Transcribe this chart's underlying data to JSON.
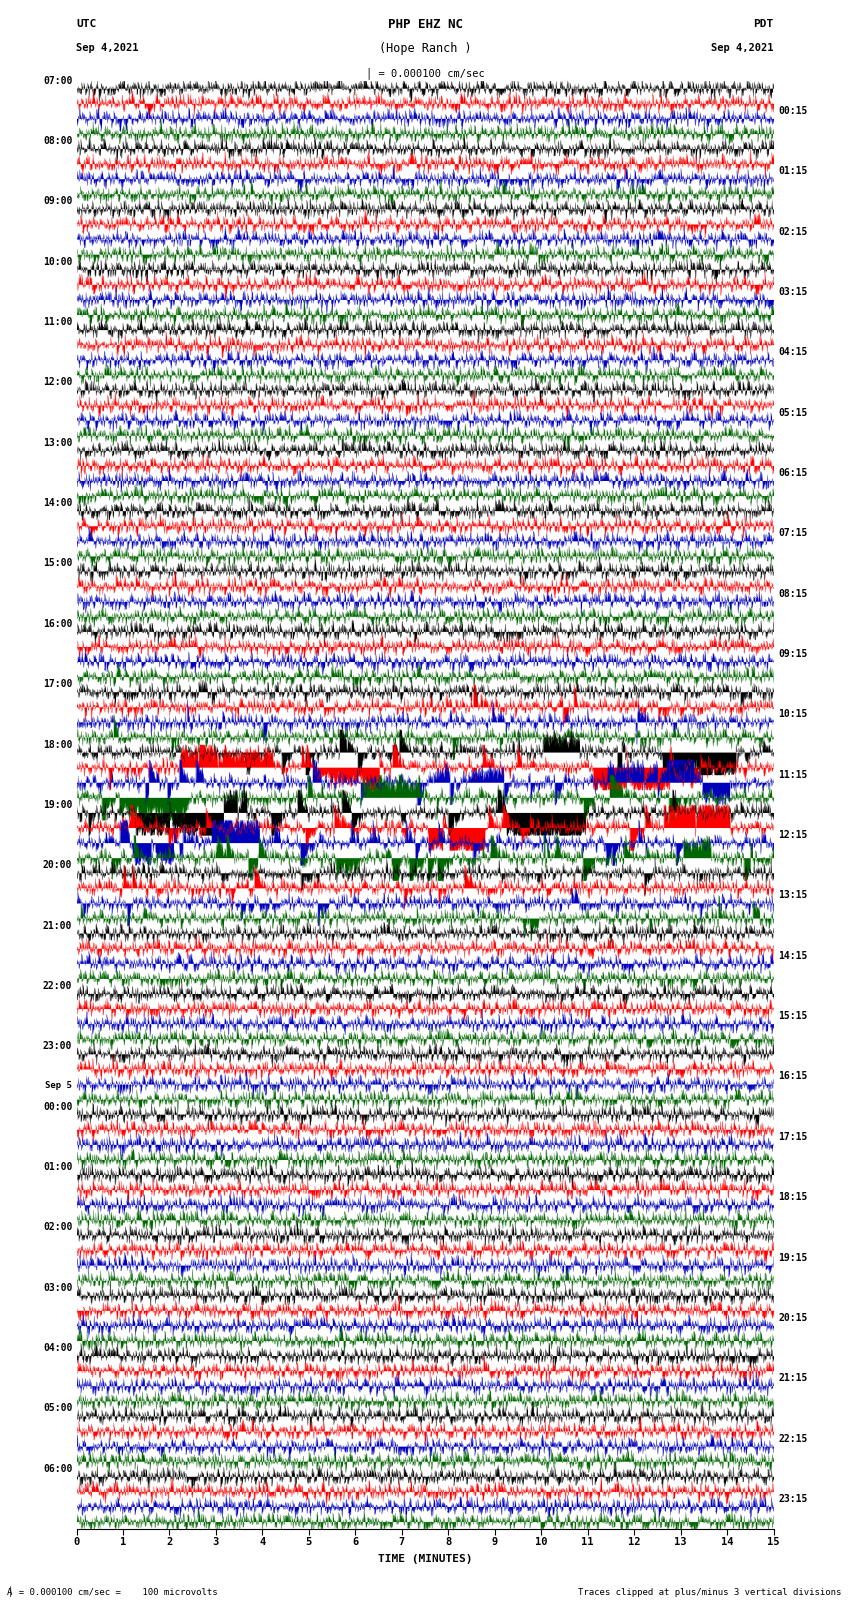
{
  "title_line1": "PHP EHZ NC",
  "title_line2": "(Hope Ranch )",
  "scale_text": "= 0.000100 cm/sec",
  "left_header1": "UTC",
  "left_header2": "Sep 4,2021",
  "right_header1": "PDT",
  "right_header2": "Sep 4,2021",
  "xlabel": "TIME (MINUTES)",
  "footer_left": "= 0.000100 cm/sec =    100 microvolts",
  "footer_right": "Traces clipped at plus/minus 3 vertical divisions",
  "left_times": [
    "07:00",
    "08:00",
    "09:00",
    "10:00",
    "11:00",
    "12:00",
    "13:00",
    "14:00",
    "15:00",
    "16:00",
    "17:00",
    "18:00",
    "19:00",
    "20:00",
    "21:00",
    "22:00",
    "23:00",
    "00:00",
    "01:00",
    "02:00",
    "03:00",
    "04:00",
    "05:00",
    "06:00"
  ],
  "sep5_row": 17,
  "right_times": [
    "00:15",
    "01:15",
    "02:15",
    "03:15",
    "04:15",
    "05:15",
    "06:15",
    "07:15",
    "08:15",
    "09:15",
    "10:15",
    "11:15",
    "12:15",
    "13:15",
    "14:15",
    "15:15",
    "16:15",
    "17:15",
    "18:15",
    "19:15",
    "20:15",
    "21:15",
    "22:15",
    "23:15"
  ],
  "num_rows": 24,
  "traces_per_row": 4,
  "minutes_per_row": 15,
  "colors": [
    "black",
    "red",
    "#0000bb",
    "#006600"
  ],
  "bg_color": "white",
  "event_rows": [
    10,
    11,
    12,
    13
  ],
  "heavy_event_rows": [
    11,
    12
  ],
  "seed": 42
}
